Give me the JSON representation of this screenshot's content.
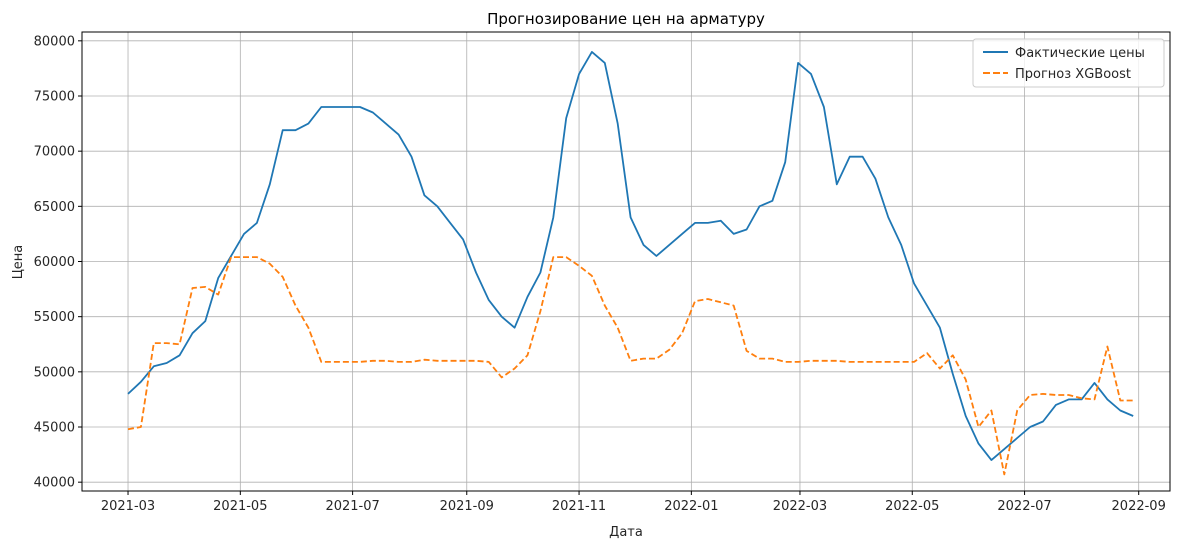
{
  "chart_data": {
    "type": "line",
    "title": "Прогнозирование цен на арматуру",
    "xlabel": "Дата",
    "ylabel": "Цена",
    "xlim": [
      "2021-02-04",
      "2022-09-18"
    ],
    "ylim": [
      39200,
      80800
    ],
    "grid": true,
    "legend_position": "top-right",
    "x_ticks": [
      "2021-03",
      "2021-05",
      "2021-07",
      "2021-09",
      "2021-11",
      "2022-01",
      "2022-03",
      "2022-05",
      "2022-07",
      "2022-09"
    ],
    "x_tick_dates": [
      "2021-03-01",
      "2021-05-01",
      "2021-07-01",
      "2021-09-01",
      "2021-11-01",
      "2022-01-01",
      "2022-03-01",
      "2022-05-01",
      "2022-07-01",
      "2022-09-01"
    ],
    "y_ticks": [
      40000,
      45000,
      50000,
      55000,
      60000,
      65000,
      70000,
      75000,
      80000
    ],
    "series": [
      {
        "name": "Фактические цены",
        "color": "#1f77b4",
        "style": "solid",
        "x": [
          "2021-03-01",
          "2021-03-08",
          "2021-03-15",
          "2021-03-22",
          "2021-03-29",
          "2021-04-05",
          "2021-04-12",
          "2021-04-19",
          "2021-04-26",
          "2021-05-03",
          "2021-05-10",
          "2021-05-17",
          "2021-05-24",
          "2021-05-31",
          "2021-06-07",
          "2021-06-14",
          "2021-06-21",
          "2021-06-28",
          "2021-07-05",
          "2021-07-12",
          "2021-07-19",
          "2021-07-26",
          "2021-08-02",
          "2021-08-09",
          "2021-08-16",
          "2021-08-23",
          "2021-08-30",
          "2021-09-06",
          "2021-09-13",
          "2021-09-20",
          "2021-09-27",
          "2021-10-04",
          "2021-10-11",
          "2021-10-18",
          "2021-10-25",
          "2021-11-01",
          "2021-11-08",
          "2021-11-15",
          "2021-11-22",
          "2021-11-29",
          "2021-12-06",
          "2021-12-13",
          "2021-12-20",
          "2021-12-27",
          "2022-01-03",
          "2022-01-10",
          "2022-01-17",
          "2022-01-24",
          "2022-01-31",
          "2022-02-07",
          "2022-02-14",
          "2022-02-21",
          "2022-02-28",
          "2022-03-07",
          "2022-03-14",
          "2022-03-21",
          "2022-03-28",
          "2022-04-04",
          "2022-04-11",
          "2022-04-18",
          "2022-04-25",
          "2022-05-02",
          "2022-05-09",
          "2022-05-16",
          "2022-05-23",
          "2022-05-30",
          "2022-06-06",
          "2022-06-13",
          "2022-06-20",
          "2022-06-27",
          "2022-07-04",
          "2022-07-11",
          "2022-07-18",
          "2022-07-25",
          "2022-08-01",
          "2022-08-08",
          "2022-08-15",
          "2022-08-22",
          "2022-08-29"
        ],
        "y": [
          48000,
          49100,
          50500,
          50800,
          51500,
          53500,
          54600,
          58500,
          60500,
          62500,
          63500,
          67000,
          71900,
          71900,
          72500,
          74000,
          74000,
          74000,
          74000,
          73500,
          72500,
          71500,
          69500,
          66000,
          65000,
          63500,
          62000,
          59000,
          56500,
          55000,
          54000,
          56800,
          59000,
          64000,
          73000,
          77000,
          79000,
          78000,
          72500,
          64000,
          61500,
          60500,
          61500,
          62500,
          63500,
          63500,
          63700,
          62500,
          62900,
          65000,
          65500,
          69000,
          78000,
          77000,
          74000,
          67000,
          69500,
          69500,
          67500,
          64000,
          61500,
          58000,
          56000,
          54000,
          49800,
          46000,
          43500,
          42000,
          43000,
          44000,
          45000,
          45500,
          47000,
          47500,
          47500,
          49000,
          47500,
          46500,
          46000
        ]
      },
      {
        "name": "Прогноз XGBoost",
        "color": "#ff7f0e",
        "style": "dashed",
        "x": [
          "2021-03-01",
          "2021-03-08",
          "2021-03-15",
          "2021-03-22",
          "2021-03-29",
          "2021-04-05",
          "2021-04-12",
          "2021-04-19",
          "2021-04-26",
          "2021-05-03",
          "2021-05-10",
          "2021-05-17",
          "2021-05-24",
          "2021-05-31",
          "2021-06-07",
          "2021-06-14",
          "2021-06-21",
          "2021-06-28",
          "2021-07-05",
          "2021-07-12",
          "2021-07-19",
          "2021-07-26",
          "2021-08-02",
          "2021-08-09",
          "2021-08-16",
          "2021-08-23",
          "2021-08-30",
          "2021-09-06",
          "2021-09-13",
          "2021-09-20",
          "2021-09-27",
          "2021-10-04",
          "2021-10-11",
          "2021-10-18",
          "2021-10-25",
          "2021-11-01",
          "2021-11-08",
          "2021-11-15",
          "2021-11-22",
          "2021-11-29",
          "2021-12-06",
          "2021-12-13",
          "2021-12-20",
          "2021-12-27",
          "2022-01-03",
          "2022-01-10",
          "2022-01-17",
          "2022-01-24",
          "2022-01-31",
          "2022-02-07",
          "2022-02-14",
          "2022-02-21",
          "2022-02-28",
          "2022-03-07",
          "2022-03-14",
          "2022-03-21",
          "2022-03-28",
          "2022-04-04",
          "2022-04-11",
          "2022-04-18",
          "2022-04-25",
          "2022-05-02",
          "2022-05-09",
          "2022-05-16",
          "2022-05-23",
          "2022-05-30",
          "2022-06-06",
          "2022-06-13",
          "2022-06-20",
          "2022-06-27",
          "2022-07-04",
          "2022-07-11",
          "2022-07-18",
          "2022-07-25",
          "2022-08-01",
          "2022-08-08",
          "2022-08-15",
          "2022-08-22",
          "2022-08-29"
        ],
        "y": [
          44800,
          45000,
          52600,
          52600,
          52500,
          57600,
          57700,
          57000,
          60400,
          60400,
          60400,
          59800,
          58600,
          56000,
          54000,
          50900,
          50900,
          50900,
          50900,
          51000,
          51000,
          50900,
          50900,
          51100,
          51000,
          51000,
          51000,
          51000,
          50900,
          49500,
          50300,
          51500,
          55500,
          60400,
          60400,
          59600,
          58700,
          56000,
          54000,
          51000,
          51200,
          51200,
          52000,
          53500,
          56400,
          56600,
          56300,
          56000,
          51900,
          51200,
          51200,
          50900,
          50900,
          51000,
          51000,
          51000,
          50900,
          50900,
          50900,
          50900,
          50900,
          50900,
          51700,
          50300,
          51500,
          49300,
          45000,
          46500,
          40700,
          46500,
          47900,
          48000,
          47900,
          47900,
          47600,
          47500,
          52300,
          47400,
          47400
        ]
      }
    ]
  }
}
